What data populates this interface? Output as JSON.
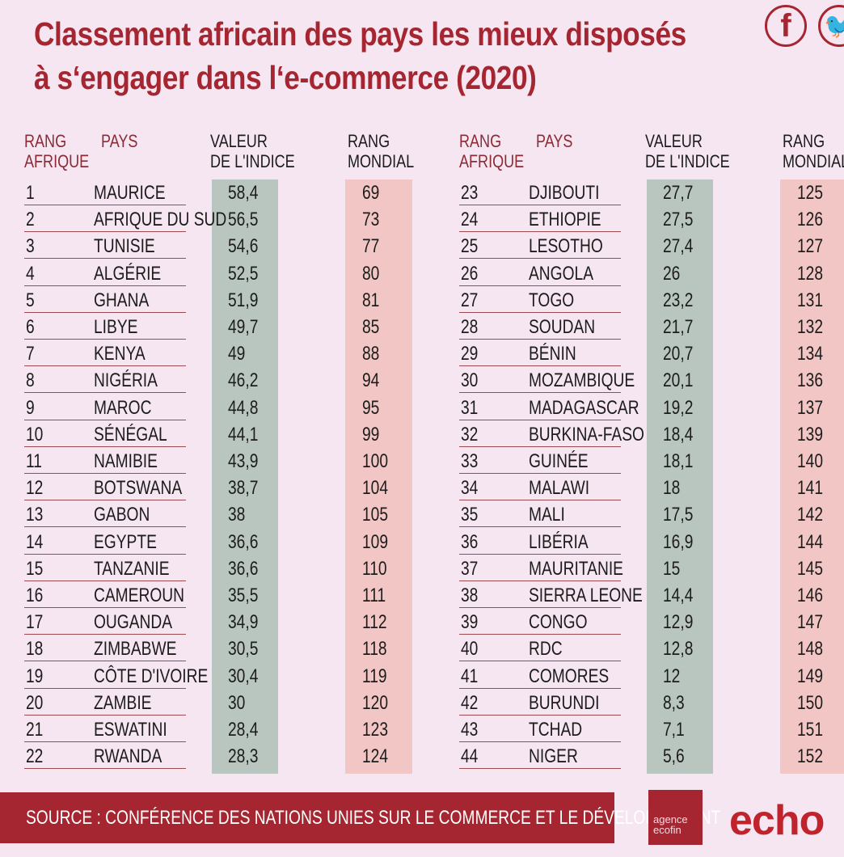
{
  "header": {
    "title_line1": "Classement africain des pays les mieux disposés",
    "title_line2": "à s‘engager dans l‘e-commerce (2020)"
  },
  "social": {
    "facebook": "facebook-icon",
    "twitter": "twitter-icon"
  },
  "columns": {
    "rank_africa": "RANG",
    "rank_africa2": "AFRIQUE",
    "country": "PAYS",
    "index": "VALEUR",
    "index2": "DE L'INDICE",
    "rank_world": "RANG",
    "rank_world2": "MONDIAL"
  },
  "colors": {
    "title": "#a52630",
    "index_col": "#b9c6c0",
    "world_col": "#f2c6c4",
    "background": "#f5e6f1"
  },
  "chart_data": {
    "type": "table",
    "title": "Classement africain des pays les mieux disposés à s‘engager dans l‘e-commerce (2020)",
    "headers": [
      "RANG AFRIQUE",
      "PAYS",
      "VALEUR DE L'INDICE",
      "RANG MONDIAL"
    ],
    "rows": [
      [
        "1",
        "MAURICE",
        "58,4",
        "69"
      ],
      [
        "2",
        "AFRIQUE DU SUD",
        "56,5",
        "73"
      ],
      [
        "3",
        "TUNISIE",
        "54,6",
        "77"
      ],
      [
        "4",
        "ALGÉRIE",
        "52,5",
        "80"
      ],
      [
        "5",
        "GHANA",
        "51,9",
        "81"
      ],
      [
        "6",
        "LIBYE",
        "49,7",
        "85"
      ],
      [
        "7",
        "KENYA",
        "49",
        "88"
      ],
      [
        "8",
        "NIGÉRIA",
        "46,2",
        "94"
      ],
      [
        "9",
        "MAROC",
        "44,8",
        "95"
      ],
      [
        "10",
        "SÉNÉGAL",
        "44,1",
        "99"
      ],
      [
        "11",
        "NAMIBIE",
        "43,9",
        "100"
      ],
      [
        "12",
        "BOTSWANA",
        "38,7",
        "104"
      ],
      [
        "13",
        "GABON",
        "38",
        "105"
      ],
      [
        "14",
        "EGYPTE",
        "36,6",
        "109"
      ],
      [
        "15",
        "TANZANIE",
        "36,6",
        "110"
      ],
      [
        "16",
        "CAMEROUN",
        "35,5",
        "111"
      ],
      [
        "17",
        "OUGANDA",
        "34,9",
        "112"
      ],
      [
        "18",
        "ZIMBABWE",
        "30,5",
        "118"
      ],
      [
        "19",
        "CÔTE D'IVOIRE",
        "30,4",
        "119"
      ],
      [
        "20",
        "ZAMBIE",
        "30",
        "120"
      ],
      [
        "21",
        "ESWATINI",
        "28,4",
        "123"
      ],
      [
        "22",
        "RWANDA",
        "28,3",
        "124"
      ],
      [
        "23",
        "DJIBOUTI",
        "27,7",
        "125"
      ],
      [
        "24",
        "ETHIOPIE",
        "27,5",
        "126"
      ],
      [
        "25",
        "LESOTHO",
        "27,4",
        "127"
      ],
      [
        "26",
        "ANGOLA",
        "26",
        "128"
      ],
      [
        "27",
        "TOGO",
        "23,2",
        "131"
      ],
      [
        "28",
        "SOUDAN",
        "21,7",
        "132"
      ],
      [
        "29",
        "BÉNIN",
        "20,7",
        "134"
      ],
      [
        "30",
        "MOZAMBIQUE",
        "20,1",
        "136"
      ],
      [
        "31",
        "MADAGASCAR",
        "19,2",
        "137"
      ],
      [
        "32",
        "BURKINA-FASO",
        "18,4",
        "139"
      ],
      [
        "33",
        "GUINÉE",
        "18,1",
        "140"
      ],
      [
        "34",
        "MALAWI",
        "18",
        "141"
      ],
      [
        "35",
        "MALI",
        "17,5",
        "142"
      ],
      [
        "36",
        "LIBÉRIA",
        "16,9",
        "144"
      ],
      [
        "37",
        "MAURITANIE",
        "15",
        "145"
      ],
      [
        "38",
        "SIERRA LEONE",
        "14,4",
        "146"
      ],
      [
        "39",
        "CONGO",
        "12,9",
        "147"
      ],
      [
        "40",
        "RDC",
        "12,8",
        "148"
      ],
      [
        "41",
        "COMORES",
        "12",
        "149"
      ],
      [
        "42",
        "BURUNDI",
        "8,3",
        "150"
      ],
      [
        "43",
        "TCHAD",
        "7,1",
        "151"
      ],
      [
        "44",
        "NIGER",
        "5,6",
        "152"
      ]
    ]
  },
  "footer": {
    "source": "SOURCE : CONFÉRENCE DES NATIONS UNIES SUR LE COMMERCE ET LE DÉVELOPPEMENT",
    "logo1_line1": "agence",
    "logo1_line2": "ecofin",
    "logo2": "echo"
  }
}
